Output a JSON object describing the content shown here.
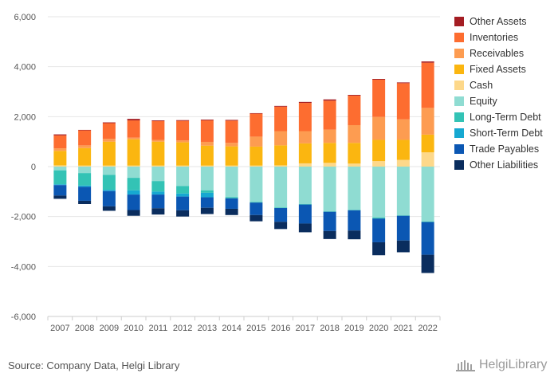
{
  "chart_data": {
    "type": "bar",
    "stacked": true,
    "categories": [
      "2007",
      "2008",
      "2009",
      "2010",
      "2011",
      "2012",
      "2013",
      "2014",
      "2015",
      "2016",
      "2017",
      "2018",
      "2019",
      "2020",
      "2021",
      "2022"
    ],
    "ylim": [
      -6000,
      6000
    ],
    "yticks": [
      -6000,
      -4000,
      -2000,
      0,
      2000,
      4000,
      6000
    ],
    "ytick_labels": [
      "-6,000",
      "-4,000",
      "-2,000",
      "0",
      "2,000",
      "4,000",
      "6,000"
    ],
    "grid": true,
    "legend_position": "top-right",
    "positive_series": [
      {
        "name": "Cash",
        "color": "#fdd88a",
        "values": [
          50,
          40,
          40,
          40,
          40,
          40,
          40,
          40,
          40,
          50,
          130,
          150,
          120,
          220,
          270,
          570
        ]
      },
      {
        "name": "Fixed Assets",
        "color": "#fbb610",
        "values": [
          580,
          700,
          960,
          1050,
          960,
          930,
          800,
          770,
          760,
          800,
          800,
          800,
          830,
          850,
          800,
          710
        ]
      },
      {
        "name": "Receivables",
        "color": "#fd9c51",
        "values": [
          100,
          110,
          110,
          70,
          70,
          80,
          150,
          140,
          400,
          570,
          490,
          530,
          710,
          920,
          820,
          1070
        ]
      },
      {
        "name": "Inventories",
        "color": "#fd6d30",
        "values": [
          520,
          600,
          630,
          690,
          750,
          780,
          860,
          890,
          920,
          980,
          1130,
          1160,
          1180,
          1490,
          1450,
          1810
        ]
      },
      {
        "name": "Other Assets",
        "color": "#a41d23",
        "values": [
          40,
          20,
          30,
          60,
          30,
          30,
          30,
          30,
          20,
          30,
          40,
          50,
          30,
          30,
          30,
          50
        ]
      }
    ],
    "negative_series": [
      {
        "name": "Equity",
        "color": "#8fdcd2",
        "values": [
          150,
          260,
          330,
          450,
          580,
          780,
          950,
          1220,
          1420,
          1640,
          1500,
          1790,
          1730,
          2040,
          1950,
          2200
        ]
      },
      {
        "name": "Long-Term Debt",
        "color": "#33c3b5",
        "values": [
          560,
          500,
          600,
          500,
          420,
          300,
          100,
          50,
          20,
          20,
          20,
          20,
          20,
          40,
          20,
          20
        ]
      },
      {
        "name": "Short-Term Debt",
        "color": "#16a8d1",
        "values": [
          30,
          50,
          50,
          170,
          120,
          120,
          180,
          0,
          0,
          0,
          0,
          0,
          0,
          0,
          0,
          0
        ]
      },
      {
        "name": "Trade Payables",
        "color": "#0b57b3",
        "values": [
          420,
          560,
          610,
          620,
          550,
          550,
          420,
          420,
          500,
          550,
          760,
          770,
          810,
          950,
          990,
          1310
        ]
      },
      {
        "name": "Other Liabilities",
        "color": "#0a2d5e",
        "values": [
          130,
          130,
          180,
          230,
          250,
          250,
          250,
          250,
          250,
          290,
          350,
          320,
          350,
          520,
          470,
          730
        ]
      }
    ]
  },
  "legend_order": [
    "Other Assets",
    "Inventories",
    "Receivables",
    "Fixed Assets",
    "Cash",
    "Equity",
    "Long-Term Debt",
    "Short-Term Debt",
    "Trade Payables",
    "Other Liabilities"
  ],
  "legend_colors": [
    "#a41d23",
    "#fd6d30",
    "#fd9c51",
    "#fbb610",
    "#fdd88a",
    "#8fdcd2",
    "#33c3b5",
    "#16a8d1",
    "#0b57b3",
    "#0a2d5e"
  ],
  "footer": {
    "source": "Source: Company Data, Helgi Library",
    "brand": "HelgiLibrary"
  }
}
